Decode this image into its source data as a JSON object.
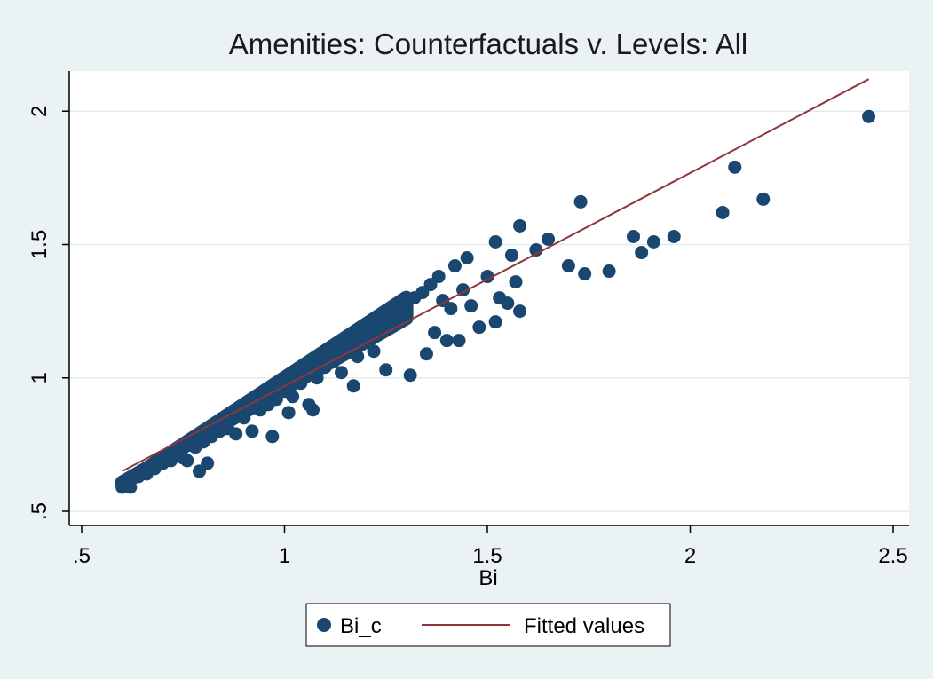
{
  "chart_data": {
    "type": "scatter",
    "title": "Amenities: Counterfactuals v. Levels: All",
    "xlabel": "Bi",
    "ylabel": "",
    "xlim": [
      0.5,
      2.5
    ],
    "ylim": [
      0.5,
      2.15
    ],
    "xticks": [
      0.5,
      1,
      1.5,
      2,
      2.5
    ],
    "xtick_labels": [
      ".5",
      "1",
      "1.5",
      "2",
      "2.5"
    ],
    "yticks": [
      0.5,
      1,
      1.5,
      2
    ],
    "ytick_labels": [
      ".5",
      "1",
      "1.5",
      "2"
    ],
    "grid": "horizontal",
    "legend": "bottom",
    "colors": {
      "points": "#1a476f",
      "fit": "#90353b",
      "plot_bg": "#ffffff",
      "page_bg": "#eaf2f3",
      "grid": "#e2ecee"
    },
    "series": [
      {
        "name": "Bi_c",
        "kind": "scatter",
        "points": [
          [
            0.6,
            0.59
          ],
          [
            0.61,
            0.6
          ],
          [
            0.62,
            0.59
          ],
          [
            0.64,
            0.63
          ],
          [
            0.66,
            0.64
          ],
          [
            0.68,
            0.66
          ],
          [
            0.7,
            0.68
          ],
          [
            0.72,
            0.69
          ],
          [
            0.74,
            0.71
          ],
          [
            0.75,
            0.7
          ],
          [
            0.76,
            0.69
          ],
          [
            0.78,
            0.74
          ],
          [
            0.79,
            0.65
          ],
          [
            0.8,
            0.76
          ],
          [
            0.81,
            0.68
          ],
          [
            0.82,
            0.78
          ],
          [
            0.84,
            0.8
          ],
          [
            0.86,
            0.81
          ],
          [
            0.88,
            0.79
          ],
          [
            0.9,
            0.85
          ],
          [
            0.92,
            0.8
          ],
          [
            0.94,
            0.88
          ],
          [
            0.96,
            0.9
          ],
          [
            0.97,
            0.78
          ],
          [
            0.98,
            0.92
          ],
          [
            1.0,
            0.95
          ],
          [
            1.01,
            0.87
          ],
          [
            1.02,
            0.93
          ],
          [
            1.04,
            0.98
          ],
          [
            1.06,
            0.9
          ],
          [
            1.07,
            0.88
          ],
          [
            1.08,
            1.0
          ],
          [
            1.1,
            1.04
          ],
          [
            1.12,
            1.06
          ],
          [
            1.14,
            1.02
          ],
          [
            1.16,
            1.1
          ],
          [
            1.17,
            0.97
          ],
          [
            1.18,
            1.08
          ],
          [
            1.2,
            1.14
          ],
          [
            1.22,
            1.1
          ],
          [
            1.24,
            1.18
          ],
          [
            1.25,
            1.03
          ],
          [
            1.26,
            1.2
          ],
          [
            1.28,
            1.24
          ],
          [
            1.3,
            1.28
          ],
          [
            1.31,
            1.01
          ],
          [
            1.32,
            1.3
          ],
          [
            1.34,
            1.32
          ],
          [
            1.35,
            1.09
          ],
          [
            1.36,
            1.35
          ],
          [
            1.37,
            1.17
          ],
          [
            1.38,
            1.38
          ],
          [
            1.39,
            1.29
          ],
          [
            1.4,
            1.14
          ],
          [
            1.41,
            1.26
          ],
          [
            1.42,
            1.42
          ],
          [
            1.43,
            1.14
          ],
          [
            1.44,
            1.33
          ],
          [
            1.45,
            1.45
          ],
          [
            1.46,
            1.27
          ],
          [
            1.48,
            1.19
          ],
          [
            1.5,
            1.38
          ],
          [
            1.52,
            1.51
          ],
          [
            1.52,
            1.21
          ],
          [
            1.53,
            1.3
          ],
          [
            1.55,
            1.28
          ],
          [
            1.56,
            1.46
          ],
          [
            1.57,
            1.36
          ],
          [
            1.58,
            1.57
          ],
          [
            1.58,
            1.25
          ],
          [
            1.62,
            1.48
          ],
          [
            1.65,
            1.52
          ],
          [
            1.7,
            1.42
          ],
          [
            1.73,
            1.66
          ],
          [
            1.74,
            1.39
          ],
          [
            1.8,
            1.4
          ],
          [
            1.86,
            1.53
          ],
          [
            1.88,
            1.47
          ],
          [
            1.91,
            1.51
          ],
          [
            1.96,
            1.53
          ],
          [
            2.08,
            1.62
          ],
          [
            2.11,
            1.79
          ],
          [
            2.18,
            1.67
          ],
          [
            2.44,
            1.98
          ]
        ],
        "band": {
          "x_from": 0.6,
          "x_to": 1.3,
          "upper": "y = x",
          "lower": "y = 0.88x + 0.08"
        }
      },
      {
        "name": "Fitted values",
        "kind": "line",
        "points": [
          [
            0.6,
            0.65
          ],
          [
            2.44,
            2.12
          ]
        ]
      }
    ]
  }
}
